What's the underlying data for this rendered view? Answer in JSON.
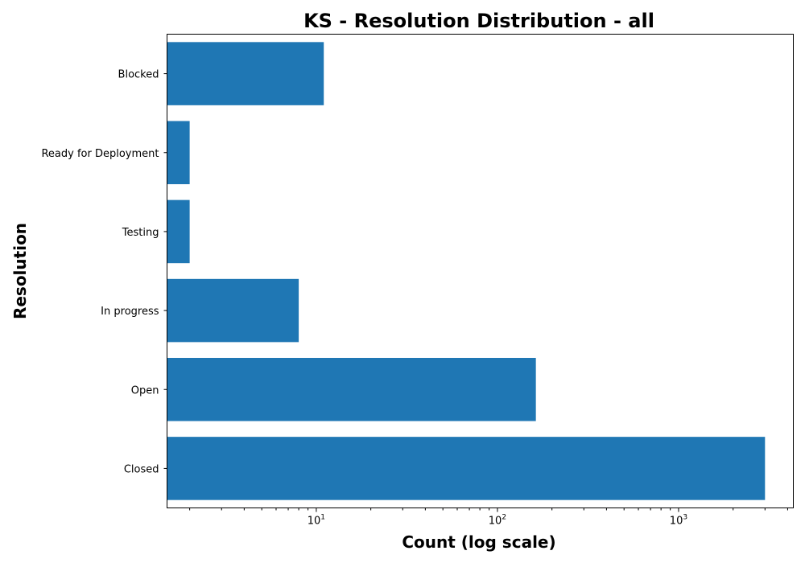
{
  "chart_data": {
    "type": "bar",
    "orientation": "horizontal",
    "title": "KS - Resolution Distribution - all",
    "xlabel": "Count (log scale)",
    "ylabel": "Resolution",
    "x_scale": "log",
    "xlim": [
      1.5,
      4300
    ],
    "x_tick_labels": [
      {
        "value": 10,
        "base": "10",
        "exponent": "1"
      },
      {
        "value": 100,
        "base": "10",
        "exponent": "2"
      },
      {
        "value": 1000,
        "base": "10",
        "exponent": "3"
      }
    ],
    "categories": [
      "Closed",
      "Open",
      "In progress",
      "Testing",
      "Ready for Deployment",
      "Blocked"
    ],
    "values": [
      3000,
      163,
      8,
      2,
      2,
      11
    ],
    "bar_color": "#1f77b4",
    "grid": false,
    "legend": "none"
  }
}
